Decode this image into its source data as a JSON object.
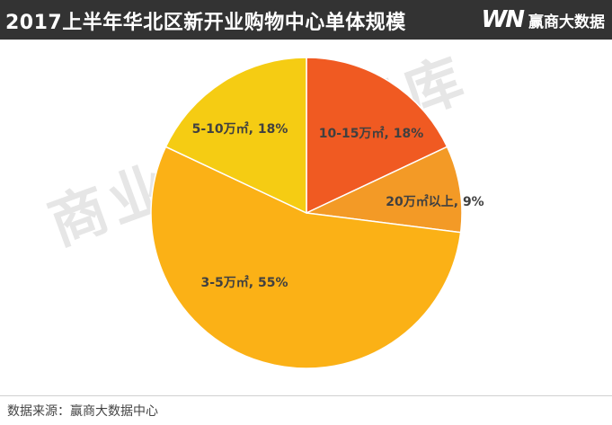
{
  "header": {
    "title": "2017上半年华北区新开业购物中心单体规模",
    "brand_logo": "WN",
    "brand_name": "赢商大数据"
  },
  "watermark": "商业地产云智库",
  "footer": {
    "source": "数据来源：赢商大数据中心"
  },
  "chart_data": {
    "type": "pie",
    "title": "2017上半年华北区新开业购物中心单体规模",
    "start": "12 o'clock, clockwise",
    "slices": [
      {
        "label": "10-15万㎡, 18%",
        "value": 18,
        "color": "#F05A22"
      },
      {
        "label": "20万㎡以上, 9%",
        "value": 9,
        "color": "#F39A26"
      },
      {
        "label": "3-5万㎡, 55%",
        "value": 55,
        "color": "#FBB116"
      },
      {
        "label": "5-10万㎡, 18%",
        "value": 18,
        "color": "#F5CC13"
      }
    ]
  }
}
